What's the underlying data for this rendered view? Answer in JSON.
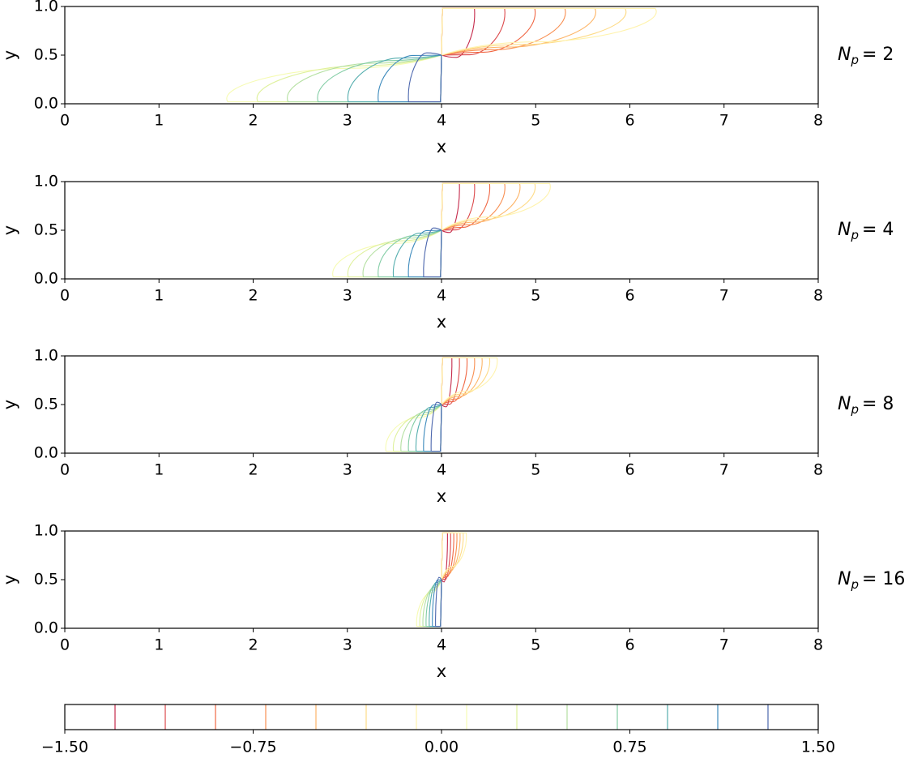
{
  "chart_data": [
    {
      "type": "contour",
      "xlabel": "x",
      "ylabel": "y",
      "annotation": {
        "symbol": "N",
        "subscript": "p",
        "text": "= 2"
      },
      "xlim": [
        0,
        8
      ],
      "ylim": [
        0,
        1
      ],
      "xticks": [
        0,
        1,
        2,
        3,
        4,
        5,
        6,
        7,
        8
      ],
      "yticks": [
        {
          "value": 0,
          "label": "0.0"
        },
        {
          "value": 0.5,
          "label": "0.5"
        },
        {
          "value": 1,
          "label": "1.0"
        }
      ]
    },
    {
      "type": "contour",
      "xlabel": "x",
      "ylabel": "y",
      "annotation": {
        "symbol": "N",
        "subscript": "p",
        "text": "= 4"
      },
      "xlim": [
        0,
        8
      ],
      "ylim": [
        0,
        1
      ],
      "xticks": [
        0,
        1,
        2,
        3,
        4,
        5,
        6,
        7,
        8
      ],
      "yticks": [
        {
          "value": 0,
          "label": "0.0"
        },
        {
          "value": 0.5,
          "label": "0.5"
        },
        {
          "value": 1,
          "label": "1.0"
        }
      ]
    },
    {
      "type": "contour",
      "xlabel": "x",
      "ylabel": "y",
      "annotation": {
        "symbol": "N",
        "subscript": "p",
        "text": "= 8"
      },
      "xlim": [
        0,
        8
      ],
      "ylim": [
        0,
        1
      ],
      "xticks": [
        0,
        1,
        2,
        3,
        4,
        5,
        6,
        7,
        8
      ],
      "yticks": [
        {
          "value": 0,
          "label": "0.0"
        },
        {
          "value": 0.5,
          "label": "0.5"
        },
        {
          "value": 1,
          "label": "1.0"
        }
      ]
    },
    {
      "type": "contour",
      "xlabel": "x",
      "ylabel": "y",
      "annotation": {
        "symbol": "N",
        "subscript": "p",
        "text": "= 16"
      },
      "xlim": [
        0,
        8
      ],
      "ylim": [
        0,
        1
      ],
      "xticks": [
        0,
        1,
        2,
        3,
        4,
        5,
        6,
        7,
        8
      ],
      "yticks": [
        {
          "value": 0,
          "label": "0.0"
        },
        {
          "value": 0.5,
          "label": "0.5"
        },
        {
          "value": 1,
          "label": "1.0"
        }
      ]
    },
    {
      "type": "colorbar",
      "xlim": [
        -1.5,
        1.5
      ],
      "xticks": [
        {
          "value": -1.5,
          "label": "−1.50"
        },
        {
          "value": -0.75,
          "label": "−0.75"
        },
        {
          "value": 0,
          "label": "0.00"
        },
        {
          "value": 0.75,
          "label": "0.75"
        },
        {
          "value": 1.5,
          "label": "1.50"
        }
      ],
      "levels": [
        -1.3,
        -1.1,
        -0.9,
        -0.7,
        -0.5,
        -0.3,
        -0.1,
        0.1,
        0.3,
        0.5,
        0.7,
        0.9,
        1.1,
        1.3
      ],
      "colors": [
        "#c52a4b",
        "#dc4a4c",
        "#f06744",
        "#f88f52",
        "#fdb567",
        "#fedb87",
        "#fff3ad",
        "#f6fbb3",
        "#dff19d",
        "#b4e0a1",
        "#83cda5",
        "#55aeae",
        "#3c8abc",
        "#4b66ad"
      ]
    }
  ]
}
